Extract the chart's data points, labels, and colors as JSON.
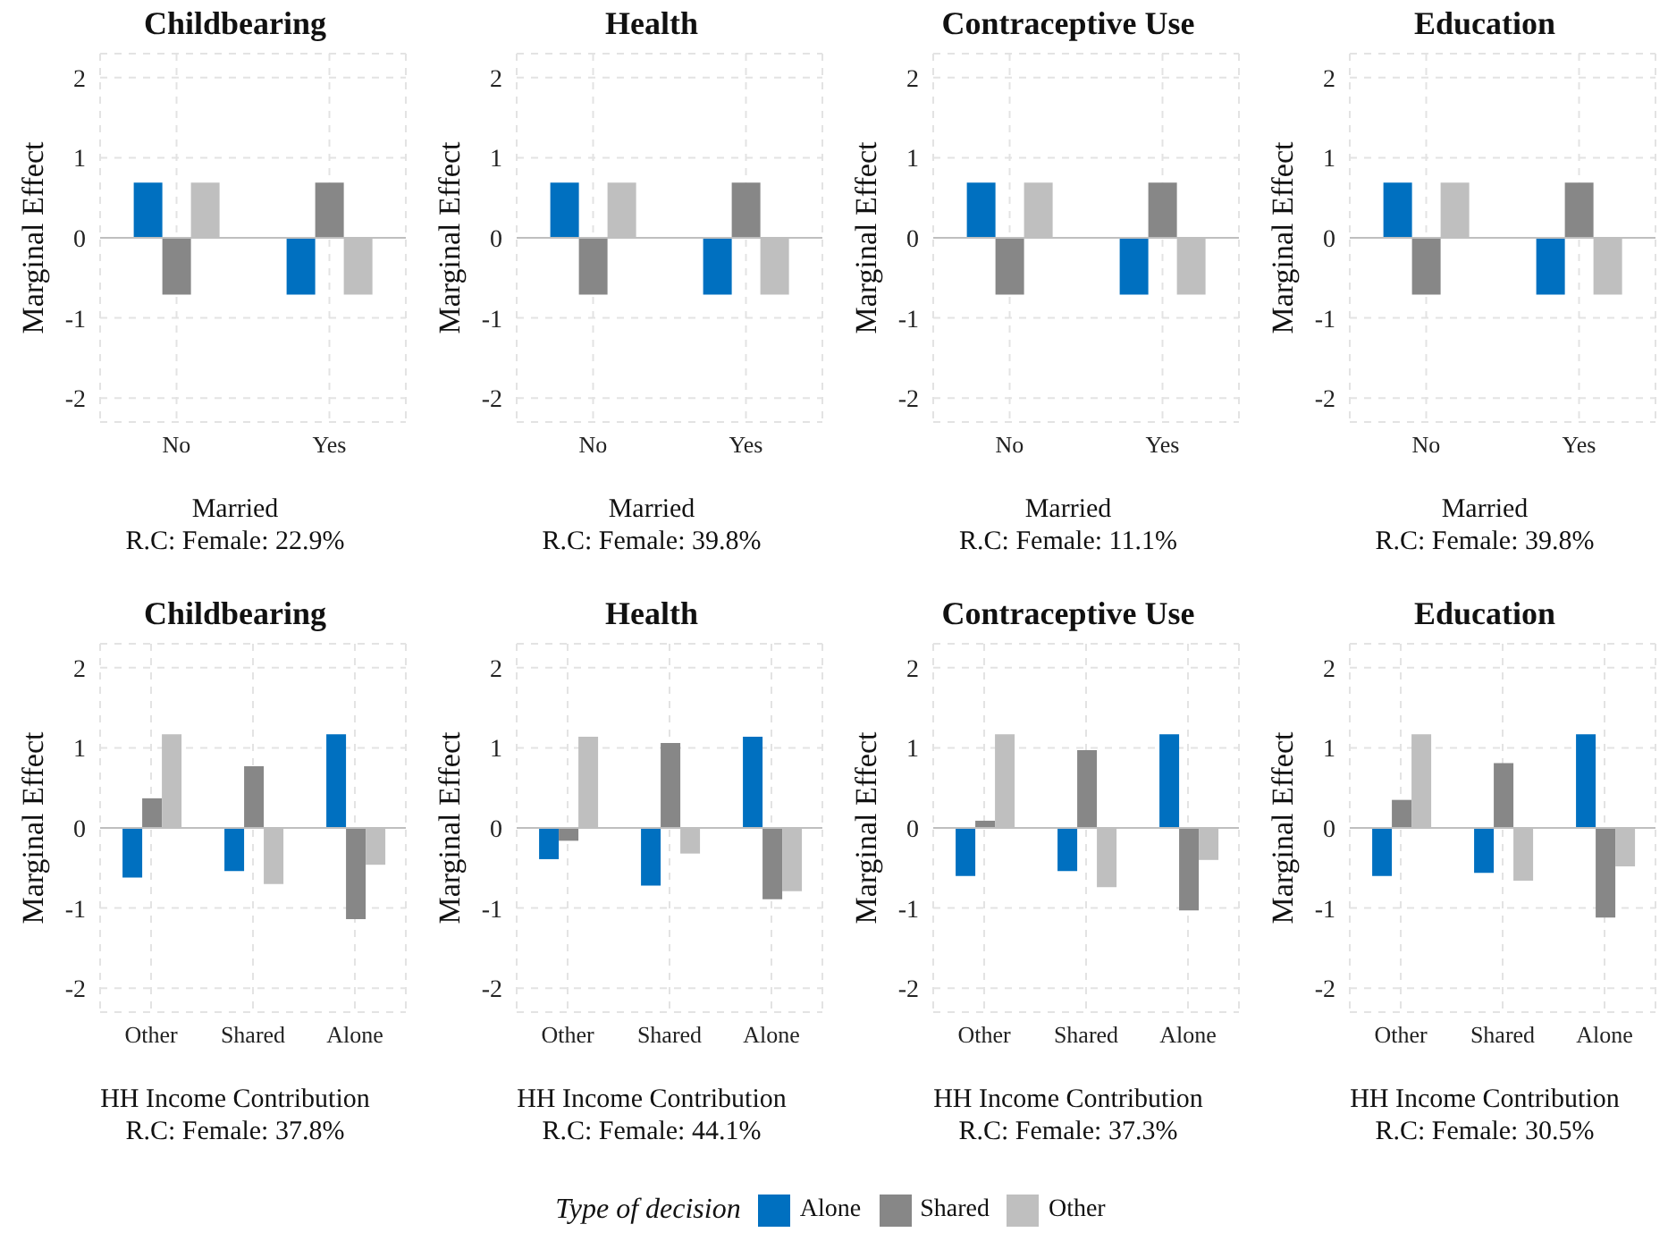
{
  "chart_data": [
    {
      "type": "bar",
      "title": "Childbearing",
      "xlabel": "Married\nR.C: Female: 22.9%",
      "ylabel": "Marginal Effect",
      "categories": [
        "No",
        "Yes"
      ],
      "series": [
        {
          "name": "Alone",
          "color": "#0070c0",
          "values": [
            0.69,
            -0.71
          ]
        },
        {
          "name": "Shared",
          "color": "#878787",
          "values": [
            -0.71,
            0.69
          ]
        },
        {
          "name": "Other",
          "color": "#bfbfbf",
          "values": [
            0.69,
            -0.71
          ]
        }
      ],
      "ylim": [
        -2.3,
        2.3
      ],
      "yticks": [
        -2,
        -1,
        0,
        1,
        2
      ],
      "grid": true,
      "ref_lines": [
        {
          "axis": "y",
          "value": 0,
          "color": "#bfbfbf"
        }
      ],
      "legend": "bottom",
      "legend_title": "Type of decision"
    },
    {
      "type": "bar",
      "title": "Health",
      "xlabel": "Married\nR.C: Female: 39.8%",
      "ylabel": "Marginal Effect",
      "categories": [
        "No",
        "Yes"
      ],
      "series": [
        {
          "color": "#0070c0",
          "values": [
            0.69,
            -0.71
          ]
        },
        {
          "color": "#878787",
          "values": [
            -0.71,
            0.69
          ]
        },
        {
          "color": "#bfbfbf",
          "values": [
            0.69,
            -0.71
          ]
        }
      ],
      "ylim": [
        -2.3,
        2.3
      ],
      "yticks": [
        -2,
        -1,
        0,
        1,
        2
      ],
      "grid": true,
      "ref_lines": [
        {
          "axis": "y",
          "value": 0,
          "color": "#bfbfbf"
        }
      ]
    },
    {
      "type": "bar",
      "title": "Contraceptive Use",
      "xlabel": "Married\nR.C: Female: 11.1%",
      "ylabel": "Marginal Effect",
      "categories": [
        "No",
        "Yes"
      ],
      "series": [
        {
          "color": "#0070c0",
          "values": [
            0.69,
            -0.71
          ]
        },
        {
          "color": "#878787",
          "values": [
            -0.71,
            0.69
          ]
        },
        {
          "color": "#bfbfbf",
          "values": [
            0.69,
            -0.71
          ]
        }
      ],
      "ylim": [
        -2.3,
        2.3
      ],
      "yticks": [
        -2,
        -1,
        0,
        1,
        2
      ],
      "grid": true,
      "ref_lines": [
        {
          "axis": "y",
          "value": 0,
          "color": "#bfbfbf"
        }
      ]
    },
    {
      "type": "bar",
      "title": "Education",
      "xlabel": "Married\nR.C: Female: 39.8%",
      "ylabel": "Marginal Effect",
      "categories": [
        "No",
        "Yes"
      ],
      "series": [
        {
          "color": "#0070c0",
          "values": [
            0.69,
            -0.71
          ]
        },
        {
          "color": "#878787",
          "values": [
            -0.71,
            0.69
          ]
        },
        {
          "color": "#bfbfbf",
          "values": [
            0.69,
            -0.71
          ]
        }
      ],
      "ylim": [
        -2.3,
        2.3
      ],
      "yticks": [
        -2,
        -1,
        0,
        1,
        2
      ],
      "grid": true,
      "ref_lines": [
        {
          "axis": "y",
          "value": 0,
          "color": "#bfbfbf"
        }
      ]
    },
    {
      "type": "bar",
      "title": "Childbearing",
      "xlabel": "HH Income Contribution\nR.C: Female: 37.8%",
      "ylabel": "Marginal Effect",
      "categories": [
        "Other",
        "Shared",
        "Alone"
      ],
      "series": [
        {
          "color": "#0070c0",
          "values": [
            -0.62,
            -0.54,
            1.17
          ]
        },
        {
          "color": "#878787",
          "values": [
            0.37,
            0.77,
            -1.14
          ]
        },
        {
          "color": "#bfbfbf",
          "values": [
            1.17,
            -0.7,
            -0.46
          ]
        }
      ],
      "ylim": [
        -2.3,
        2.3
      ],
      "yticks": [
        -2,
        -1,
        0,
        1,
        2
      ],
      "grid": true,
      "ref_lines": [
        {
          "axis": "y",
          "value": 0,
          "color": "#bfbfbf"
        }
      ]
    },
    {
      "type": "bar",
      "title": "Health",
      "xlabel": "HH Income Contribution\nR.C: Female: 44.1%",
      "ylabel": "Marginal Effect",
      "categories": [
        "Other",
        "Shared",
        "Alone"
      ],
      "series": [
        {
          "color": "#0070c0",
          "values": [
            -0.39,
            -0.72,
            1.14
          ]
        },
        {
          "color": "#878787",
          "values": [
            -0.16,
            1.06,
            -0.89
          ]
        },
        {
          "color": "#bfbfbf",
          "values": [
            1.14,
            -0.32,
            -0.79
          ]
        }
      ],
      "ylim": [
        -2.3,
        2.3
      ],
      "yticks": [
        -2,
        -1,
        0,
        1,
        2
      ],
      "grid": true,
      "ref_lines": [
        {
          "axis": "y",
          "value": 0,
          "color": "#bfbfbf"
        }
      ]
    },
    {
      "type": "bar",
      "title": "Contraceptive Use",
      "xlabel": "HH Income Contribution\nR.C: Female: 37.3%",
      "ylabel": "Marginal Effect",
      "categories": [
        "Other",
        "Shared",
        "Alone"
      ],
      "series": [
        {
          "color": "#0070c0",
          "values": [
            -0.6,
            -0.54,
            1.17
          ]
        },
        {
          "color": "#878787",
          "values": [
            0.09,
            0.97,
            -1.03
          ]
        },
        {
          "color": "#bfbfbf",
          "values": [
            1.17,
            -0.74,
            -0.4
          ]
        }
      ],
      "ylim": [
        -2.3,
        2.3
      ],
      "yticks": [
        -2,
        -1,
        0,
        1,
        2
      ],
      "grid": true,
      "ref_lines": [
        {
          "axis": "y",
          "value": 0,
          "color": "#bfbfbf"
        }
      ]
    },
    {
      "type": "bar",
      "title": "Education",
      "xlabel": "HH Income Contribution\nR.C: Female: 30.5%",
      "ylabel": "Marginal Effect",
      "categories": [
        "Other",
        "Shared",
        "Alone"
      ],
      "series": [
        {
          "color": "#0070c0",
          "values": [
            -0.6,
            -0.56,
            1.17
          ]
        },
        {
          "color": "#878787",
          "values": [
            0.35,
            0.81,
            -1.12
          ]
        },
        {
          "color": "#bfbfbf",
          "values": [
            1.17,
            -0.66,
            -0.48
          ]
        }
      ],
      "ylim": [
        -2.3,
        2.3
      ],
      "yticks": [
        -2,
        -1,
        0,
        1,
        2
      ],
      "grid": true,
      "ref_lines": [
        {
          "axis": "y",
          "value": 0,
          "color": "#bfbfbf"
        }
      ]
    }
  ]
}
